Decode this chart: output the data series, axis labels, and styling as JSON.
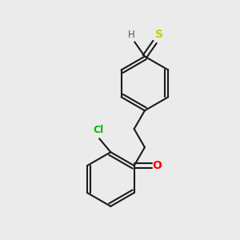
{
  "bg_color": "#ebebeb",
  "bond_color": "#1a1a1a",
  "atom_colors": {
    "S": "#cccc00",
    "O": "#ff0000",
    "Cl": "#00bb00",
    "H": "#555555",
    "C": "#1a1a1a"
  },
  "line_width": 1.5,
  "fig_w": 3.0,
  "fig_h": 3.0,
  "dpi": 100
}
